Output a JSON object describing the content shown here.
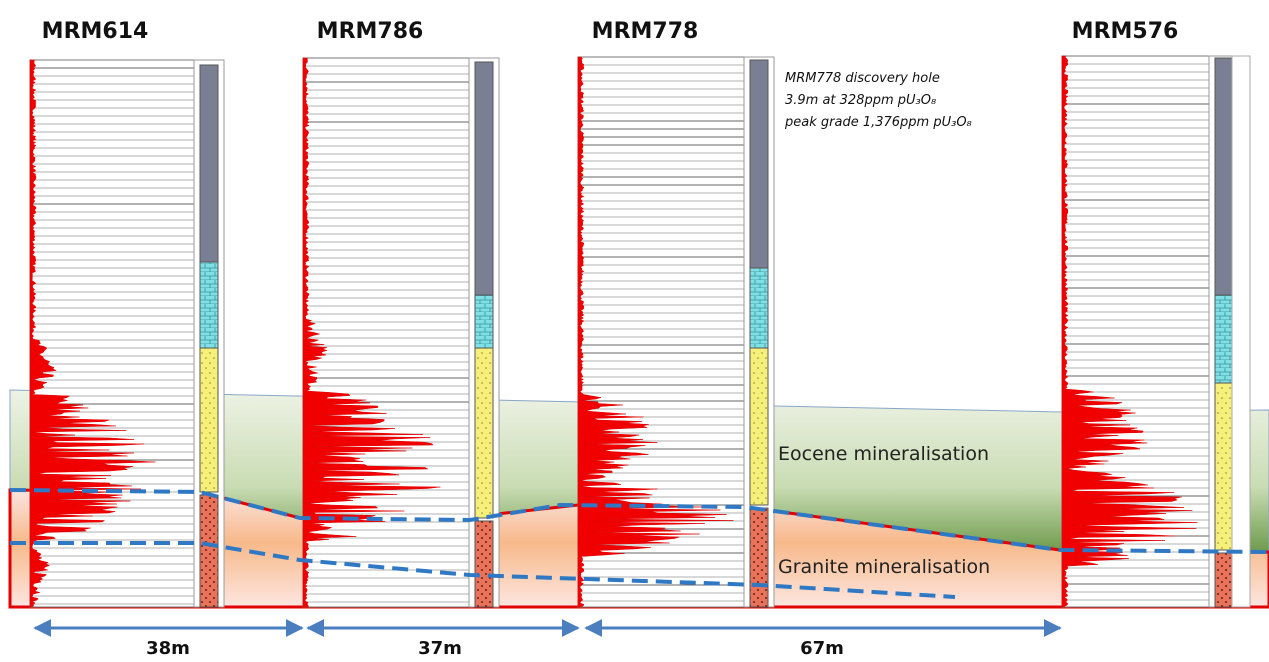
{
  "holes": [
    {
      "name": "MRM614"
    },
    {
      "name": "MRM786"
    },
    {
      "name": "MRM778"
    },
    {
      "name": "MRM576"
    }
  ],
  "annotation": {
    "lines": [
      "MRM778 discovery hole",
      "3.9m at 328ppm pU₃O₈",
      "peak grade 1,376ppm pU₃O₈"
    ]
  },
  "zones": {
    "eocene": "Eocene mineralisation",
    "granite": "Granite mineralisation"
  },
  "distances": [
    "38m",
    "37m",
    "67m"
  ]
}
